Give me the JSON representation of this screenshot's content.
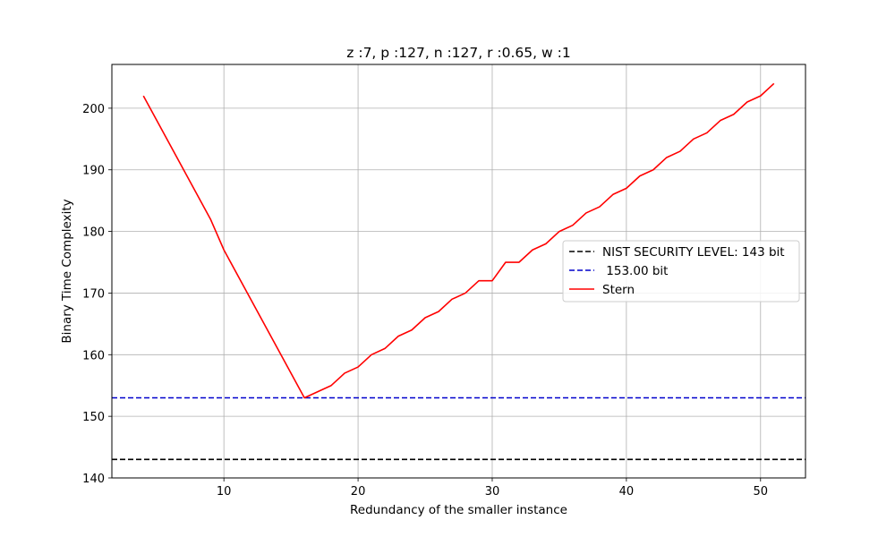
{
  "chart_data": {
    "type": "line",
    "title": "z :7, p :127, n :127, r :0.65, w :1",
    "xlabel": "Redundancy of the smaller instance",
    "ylabel": "Binary Time Complexity",
    "xlim": [
      1.65,
      53.35
    ],
    "ylim": [
      140,
      207.1
    ],
    "xticks": [
      10,
      20,
      30,
      40,
      50
    ],
    "yticks": [
      140,
      150,
      160,
      170,
      180,
      190,
      200
    ],
    "grid": true,
    "legend_position": "center-right",
    "hlines": [
      {
        "name": "NIST SECURITY LEVEL: 143 bit",
        "y": 143,
        "color": "#000000",
        "style": "dashed"
      },
      {
        "name": " 153.00 bit",
        "y": 153,
        "color": "#0000cc",
        "style": "dashed"
      }
    ],
    "series": [
      {
        "name": "Stern",
        "color": "#ff0000",
        "x": [
          4,
          9,
          10,
          16,
          18,
          19,
          20,
          21,
          22,
          23,
          24,
          25,
          26,
          27,
          28,
          29,
          30,
          31,
          32,
          33,
          34,
          35,
          36,
          37,
          38,
          39,
          40,
          41,
          42,
          43,
          44,
          45,
          46,
          47,
          48,
          49,
          50,
          51
        ],
        "y": [
          202,
          182,
          177,
          153,
          155,
          157,
          158,
          160,
          161,
          163,
          164,
          166,
          167,
          169,
          170,
          172,
          172,
          175,
          175,
          177,
          178,
          180,
          181,
          183,
          184,
          186,
          187,
          189,
          190,
          192,
          193,
          195,
          196,
          198,
          199,
          201,
          202,
          204
        ]
      }
    ]
  }
}
